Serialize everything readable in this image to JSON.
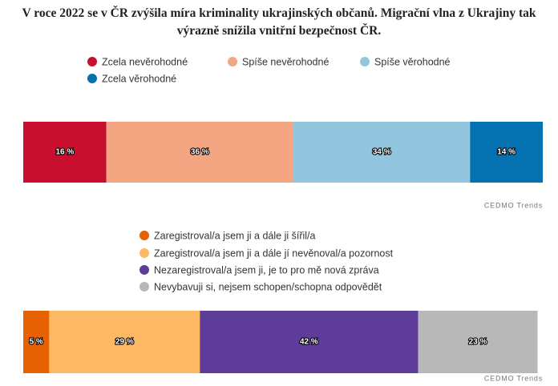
{
  "chart_data": [
    {
      "type": "stacked-bar-100",
      "title": "V roce 2022 se v ČR zvýšila míra kriminality ukrajinských občanů. Migrační vlna z Ukrajiny tak výrazně snížila vnitřní bezpečnost ČR.",
      "xlim": [
        0,
        100
      ],
      "series": [
        {
          "name": "Zcela nevěrohodné",
          "color": "#c8102e",
          "values": [
            16
          ],
          "value_labels": [
            "16 %"
          ]
        },
        {
          "name": "Spíše nevěrohodné",
          "color": "#f4a582",
          "values": [
            36
          ],
          "value_labels": [
            "36 %"
          ]
        },
        {
          "name": "Spíše věrohodné",
          "color": "#92c5de",
          "values": [
            34
          ],
          "value_labels": [
            "34 %"
          ]
        },
        {
          "name": "Zcela věrohodné",
          "color": "#0571b0",
          "values": [
            14
          ],
          "value_labels": [
            "14 %"
          ]
        }
      ],
      "source": "CEDMO Trends"
    },
    {
      "type": "stacked-bar-100",
      "xlim": [
        0,
        100
      ],
      "series": [
        {
          "name": "Zaregistroval/a jsem ji a dále ji šířil/a",
          "color": "#e66101",
          "values": [
            5
          ],
          "value_labels": [
            "5 %"
          ]
        },
        {
          "name": "Zaregistroval/a jsem ji a dále jí nevěnoval/a pozornost",
          "color": "#fdb863",
          "values": [
            29
          ],
          "value_labels": [
            "29 %"
          ]
        },
        {
          "name": "Nezaregistroval/a jsem ji, je to pro mě nová zpráva",
          "color": "#5e3c99",
          "values": [
            42
          ],
          "value_labels": [
            "42 %"
          ]
        },
        {
          "name": "Nevybavuji si, nejsem schopen/schopna odpovědět",
          "color": "#b8b8b8",
          "values": [
            23
          ],
          "value_labels": [
            "23 %"
          ]
        }
      ],
      "source": "CEDMO Trends"
    }
  ]
}
